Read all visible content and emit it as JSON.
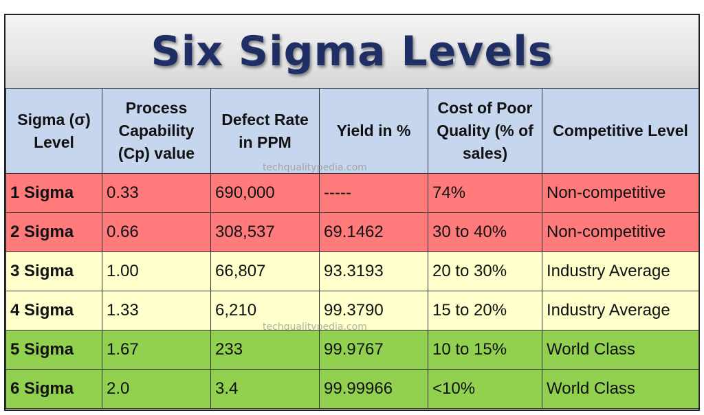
{
  "title": "Six Sigma Levels",
  "watermark": "techqualitypedia.com",
  "colors": {
    "title": "#1f2f66",
    "header_bg": "#c6d6ee",
    "red_row": "#ff7b7b",
    "yellow_row": "#ffffcc",
    "green_row": "#92d050"
  },
  "headers": [
    "Sigma (σ) Level",
    "Process Capability (Cp) value",
    "Defect Rate in PPM",
    "Yield in %",
    "Cost of Poor Quality (% of sales)",
    "Competitive Level"
  ],
  "rows": [
    {
      "cells": [
        "1 Sigma",
        "0.33",
        "690,000",
        "-----",
        "74%",
        "Non-competitive"
      ],
      "color": "#ff7b7b"
    },
    {
      "cells": [
        "2 Sigma",
        "0.66",
        "308,537",
        "69.1462",
        "30 to 40%",
        "Non-competitive"
      ],
      "color": "#ff7b7b"
    },
    {
      "cells": [
        "3 Sigma",
        "1.00",
        "66,807",
        "93.3193",
        "20 to 30%",
        "Industry Average"
      ],
      "color": "#ffffcc"
    },
    {
      "cells": [
        "4 Sigma",
        "1.33",
        "6,210",
        "99.3790",
        "15 to 20%",
        "Industry Average"
      ],
      "color": "#ffffcc"
    },
    {
      "cells": [
        "5 Sigma",
        "1.67",
        "233",
        "99.9767",
        "10 to 15%",
        "World Class"
      ],
      "color": "#92d050"
    },
    {
      "cells": [
        "6 Sigma",
        "2.0",
        "3.4",
        "99.99966",
        "<10%",
        "World Class"
      ],
      "color": "#92d050"
    }
  ]
}
